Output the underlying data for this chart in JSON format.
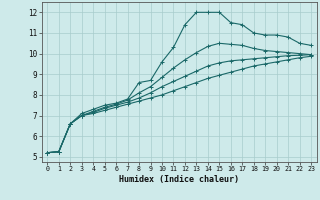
{
  "xlabel": "Humidex (Indice chaleur)",
  "xlim": [
    -0.5,
    23.5
  ],
  "ylim": [
    4.75,
    12.5
  ],
  "xticks": [
    0,
    1,
    2,
    3,
    4,
    5,
    6,
    7,
    8,
    9,
    10,
    11,
    12,
    13,
    14,
    15,
    16,
    17,
    18,
    19,
    20,
    21,
    22,
    23
  ],
  "yticks": [
    5,
    6,
    7,
    8,
    9,
    10,
    11,
    12
  ],
  "bg_color": "#ceeaea",
  "grid_color": "#a8cccc",
  "line_color": "#1a6868",
  "curve1_y": [
    5.2,
    5.25,
    6.6,
    7.1,
    7.3,
    7.5,
    7.6,
    7.8,
    8.6,
    8.7,
    9.6,
    10.3,
    11.4,
    12.0,
    12.0,
    12.0,
    11.5,
    11.4,
    11.0,
    10.9,
    10.9,
    10.8,
    10.5,
    10.4
  ],
  "curve2_y": [
    5.2,
    5.25,
    6.6,
    7.0,
    7.2,
    7.4,
    7.55,
    7.75,
    8.1,
    8.4,
    8.85,
    9.3,
    9.7,
    10.05,
    10.35,
    10.5,
    10.45,
    10.4,
    10.25,
    10.15,
    10.1,
    10.05,
    10.0,
    9.95
  ],
  "curve3_y": [
    5.2,
    5.25,
    6.6,
    7.0,
    7.15,
    7.35,
    7.5,
    7.65,
    7.85,
    8.1,
    8.4,
    8.65,
    8.9,
    9.15,
    9.4,
    9.55,
    9.65,
    9.7,
    9.75,
    9.8,
    9.85,
    9.9,
    9.92,
    9.95
  ],
  "curve4_y": [
    5.2,
    5.25,
    6.6,
    7.0,
    7.1,
    7.25,
    7.4,
    7.55,
    7.7,
    7.85,
    8.0,
    8.2,
    8.4,
    8.6,
    8.8,
    8.95,
    9.1,
    9.25,
    9.4,
    9.5,
    9.6,
    9.7,
    9.8,
    9.87
  ]
}
